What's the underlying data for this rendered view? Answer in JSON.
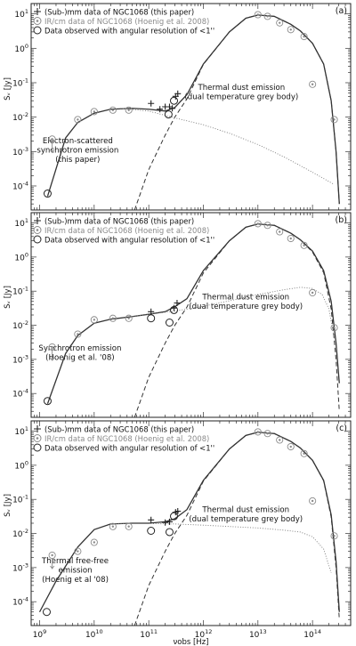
{
  "chart_data": [
    {
      "type": "line",
      "panel_label": "(a)",
      "xscale": "log",
      "yscale": "log",
      "xlim": [
        700000000.0,
        500000000000000.0
      ],
      "ylim": [
        2e-05,
        20
      ],
      "ylabel": "Sᵥ [Jy]",
      "xlabel": "",
      "x_ticks": [],
      "y_ticks": [
        {
          "v": 0.0001,
          "b": "10",
          "e": "-4"
        },
        {
          "v": 0.001,
          "b": "10",
          "e": "-3"
        },
        {
          "v": 0.01,
          "b": "10",
          "e": "-2"
        },
        {
          "v": 0.1,
          "b": "10",
          "e": "-1"
        },
        {
          "v": 1,
          "b": "10",
          "e": "0"
        },
        {
          "v": 10,
          "b": "10",
          "e": "1"
        }
      ],
      "legend": [
        {
          "symbol": "plus",
          "text": "(Sub-)mm data of NGC1068 (this paper)"
        },
        {
          "symbol": "circle-dot",
          "text": "IR/cm data  of NGC1068 (Hoenig et al. 2008)"
        },
        {
          "symbol": "circle",
          "text": "Data observed with angular resolution of <1''"
        }
      ],
      "annotations": [
        {
          "lines": [
            "Electron-scattered",
            "synchrotron emission",
            "(this paper)"
          ],
          "x": 5000000000.0,
          "y": 0.0011
        },
        {
          "lines": [
            "Thermal dust emission",
            "(dual temperature grey body)"
          ],
          "x": 5000000000000.0,
          "y": 0.055
        }
      ],
      "series": [
        {
          "style": "solid",
          "x": [
            1400000000.0,
            3000000000.0,
            5000000000.0,
            10000000000.0,
            20000000000.0,
            50000000000.0,
            100000000000.0,
            200000000000.0,
            300000000000.0,
            500000000000.0,
            1000000000000.0,
            3000000000000.0,
            6000000000000.0,
            10000000000000.0,
            20000000000000.0,
            40000000000000.0,
            60000000000000.0,
            100000000000000.0,
            160000000000000.0,
            220000000000000.0,
            270000000000000.0,
            310000000000000.0
          ],
          "y": [
            5e-05,
            0.0025,
            0.007,
            0.013,
            0.017,
            0.018,
            0.017,
            0.015,
            0.019,
            0.045,
            0.35,
            3,
            7.5,
            9.3,
            8.5,
            5,
            3.2,
            1.4,
            0.35,
            0.03,
            0.001,
            3e-05
          ]
        },
        {
          "style": "dashed",
          "x": [
            55000000000.0,
            100000000000.0,
            200000000000.0,
            300000000000.0,
            500000000000.0,
            1000000000000.0,
            3000000000000.0,
            6000000000000.0,
            10000000000000.0,
            20000000000000.0,
            40000000000000.0,
            60000000000000.0,
            100000000000000.0,
            160000000000000.0,
            220000000000000.0,
            270000000000000.0,
            310000000000000.0
          ],
          "y": [
            2e-05,
            0.0003,
            0.003,
            0.01,
            0.034,
            0.34,
            3,
            7.5,
            9.3,
            8.5,
            5,
            3.2,
            1.4,
            0.35,
            0.03,
            0.001,
            3e-05
          ]
        },
        {
          "style": "dotted",
          "x": [
            30000000000.0,
            100000000000.0,
            300000000000.0,
            1000000000000.0,
            3000000000000.0,
            10000000000000.0,
            30000000000000.0,
            100000000000000.0,
            250000000000000.0
          ],
          "y": [
            0.018,
            0.015,
            0.0095,
            0.006,
            0.0034,
            0.0016,
            0.0007,
            0.00025,
            0.00011
          ]
        }
      ],
      "points_plus": [
        [
          110000000000.0,
          0.025
        ],
        [
          160000000000.0,
          0.017
        ],
        [
          200000000000.0,
          0.02
        ],
        [
          240000000000.0,
          0.02
        ],
        [
          270000000000.0,
          0.018
        ],
        [
          310000000000.0,
          0.04
        ],
        [
          340000000000.0,
          0.048
        ]
      ],
      "points_ir_cm": [
        [
          1700000000.0,
          0.0023,
          "arrow"
        ],
        [
          5000000000.0,
          0.0085
        ],
        [
          10000000000.0,
          0.0145
        ],
        [
          22000000000.0,
          0.016
        ],
        [
          43000000000.0,
          0.016
        ],
        [
          10000000000000.0,
          9.5
        ],
        [
          15000000000000.0,
          8.5
        ],
        [
          25000000000000.0,
          5.5
        ],
        [
          40000000000000.0,
          3.5
        ],
        [
          70000000000000.0,
          2.2
        ],
        [
          100000000000000.0,
          0.09
        ],
        [
          250000000000000.0,
          0.0085
        ]
      ],
      "points_circle": [
        [
          1400000000.0,
          6e-05
        ],
        [
          230000000000.0,
          0.012
        ],
        [
          290000000000.0,
          0.03
        ]
      ]
    },
    {
      "type": "line",
      "panel_label": "(b)",
      "xscale": "log",
      "yscale": "log",
      "xlim": [
        700000000.0,
        500000000000000.0
      ],
      "ylim": [
        2e-05,
        20
      ],
      "ylabel": "Sᵥ [Jy]",
      "xlabel": "",
      "x_ticks": [],
      "y_ticks": [
        {
          "v": 0.0001,
          "b": "10",
          "e": "-4"
        },
        {
          "v": 0.001,
          "b": "10",
          "e": "-3"
        },
        {
          "v": 0.01,
          "b": "10",
          "e": "-2"
        },
        {
          "v": 0.1,
          "b": "10",
          "e": "-1"
        },
        {
          "v": 1,
          "b": "10",
          "e": "0"
        },
        {
          "v": 10,
          "b": "10",
          "e": "1"
        }
      ],
      "legend": [
        {
          "symbol": "plus",
          "text": "(Sub-)mm data of NGC1068 (this paper)"
        },
        {
          "symbol": "circle-dot",
          "text": "IR/cm data  of NGC1068 (Hoenig et al. 2008)"
        },
        {
          "symbol": "circle",
          "text": "Data observed with angular resolution of <1''"
        }
      ],
      "annotations": [
        {
          "lines": [
            "Synchrotron emission",
            "(Hoenig et al. '08)"
          ],
          "x": 5500000000.0,
          "y": 0.0016
        },
        {
          "lines": [
            "Thermal dust emission",
            "(dual temperature grey body)"
          ],
          "x": 6000000000000.0,
          "y": 0.05
        }
      ],
      "series": [
        {
          "style": "solid",
          "x": [
            1400000000.0,
            3000000000.0,
            5000000000.0,
            10000000000.0,
            20000000000.0,
            50000000000.0,
            100000000000.0,
            200000000000.0,
            300000000000.0,
            500000000000.0,
            1000000000000.0,
            3000000000000.0,
            6000000000000.0,
            10000000000000.0,
            20000000000000.0,
            40000000000000.0,
            60000000000000.0,
            100000000000000.0,
            160000000000000.0,
            220000000000000.0,
            270000000000000.0,
            310000000000000.0
          ],
          "y": [
            5e-05,
            0.0015,
            0.005,
            0.0115,
            0.015,
            0.018,
            0.021,
            0.025,
            0.035,
            0.06,
            0.4,
            3,
            7.5,
            9.3,
            8.5,
            5,
            3.2,
            1.5,
            0.4,
            0.05,
            0.003,
            0.0002
          ]
        },
        {
          "style": "dashed",
          "x": [
            55000000000.0,
            100000000000.0,
            200000000000.0,
            300000000000.0,
            500000000000.0,
            1000000000000.0,
            3000000000000.0,
            6000000000000.0,
            10000000000000.0,
            20000000000000.0,
            40000000000000.0,
            60000000000000.0,
            100000000000000.0,
            160000000000000.0,
            220000000000000.0,
            270000000000000.0,
            310000000000000.0
          ],
          "y": [
            2e-05,
            0.0003,
            0.003,
            0.01,
            0.034,
            0.34,
            3,
            7.5,
            9.3,
            8.5,
            5,
            3.2,
            1.4,
            0.35,
            0.03,
            0.001,
            3e-05
          ]
        },
        {
          "style": "dotted",
          "x": [
            50000000000.0,
            100000000000.0,
            300000000000.0,
            1000000000000.0,
            3000000000000.0,
            10000000000000.0,
            30000000000000.0,
            60000000000000.0,
            100000000000000.0,
            150000000000000.0,
            200000000000000.0,
            250000000000000.0
          ],
          "y": [
            0.018,
            0.021,
            0.026,
            0.036,
            0.052,
            0.08,
            0.11,
            0.13,
            0.12,
            0.08,
            0.03,
            0.004
          ]
        }
      ],
      "points_plus": [
        [
          110000000000.0,
          0.025
        ],
        [
          290000000000.0,
          0.032
        ],
        [
          330000000000.0,
          0.045
        ]
      ],
      "points_ir_cm": [
        [
          1700000000.0,
          0.0023,
          "arrow"
        ],
        [
          5000000000.0,
          0.0055
        ],
        [
          10000000000.0,
          0.0145
        ],
        [
          22000000000.0,
          0.016
        ],
        [
          43000000000.0,
          0.016
        ],
        [
          10000000000000.0,
          9.5
        ],
        [
          15000000000000.0,
          8.5
        ],
        [
          25000000000000.0,
          5.5
        ],
        [
          40000000000000.0,
          3.5
        ],
        [
          70000000000000.0,
          2.2
        ],
        [
          100000000000000.0,
          0.09
        ],
        [
          250000000000000.0,
          0.0085
        ]
      ],
      "points_circle": [
        [
          1400000000.0,
          6e-05
        ],
        [
          110000000000.0,
          0.016
        ],
        [
          240000000000.0,
          0.012
        ],
        [
          290000000000.0,
          0.028
        ]
      ]
    },
    {
      "type": "line",
      "panel_label": "(c)",
      "xscale": "log",
      "yscale": "log",
      "xlim": [
        700000000.0,
        500000000000000.0
      ],
      "ylim": [
        2e-05,
        20
      ],
      "ylabel": "Sᵥ [Jy]",
      "xlabel": "νobs [Hz]",
      "x_ticks": [
        {
          "v": 1000000000.0,
          "b": "10",
          "e": "9"
        },
        {
          "v": 10000000000.0,
          "b": "10",
          "e": "10"
        },
        {
          "v": 100000000000.0,
          "b": "10",
          "e": "11"
        },
        {
          "v": 1000000000000.0,
          "b": "10",
          "e": "12"
        },
        {
          "v": 10000000000000.0,
          "b": "10",
          "e": "13"
        },
        {
          "v": 100000000000000.0,
          "b": "10",
          "e": "14"
        }
      ],
      "y_ticks": [
        {
          "v": 0.0001,
          "b": "10",
          "e": "-4"
        },
        {
          "v": 0.001,
          "b": "10",
          "e": "-3"
        },
        {
          "v": 0.01,
          "b": "10",
          "e": "-2"
        },
        {
          "v": 0.1,
          "b": "10",
          "e": "-1"
        },
        {
          "v": 1,
          "b": "10",
          "e": "0"
        },
        {
          "v": 10,
          "b": "10",
          "e": "1"
        }
      ],
      "legend": [
        {
          "symbol": "plus",
          "text": "(Sub-)mm data of NGC1068 (this paper)"
        },
        {
          "symbol": "circle-dot",
          "text": "IR/cm data  of NGC1068 (Hoenig et al. 2008)"
        },
        {
          "symbol": "circle",
          "text": "Data observed with angular resolution of <1''"
        }
      ],
      "annotations": [
        {
          "lines": [
            "Thermal free-free",
            "emission",
            "(Hoenig et al '08)"
          ],
          "x": 4500000000.0,
          "y": 0.00085
        },
        {
          "lines": [
            "Thermal dust emission",
            "(dual temperature grey body)"
          ],
          "x": 6000000000000.0,
          "y": 0.037
        }
      ],
      "series": [
        {
          "style": "solid",
          "x": [
            1000000000.0,
            2000000000.0,
            5000000000.0,
            10000000000.0,
            20000000000.0,
            50000000000.0,
            100000000000.0,
            200000000000.0,
            300000000000.0,
            500000000000.0,
            1000000000000.0,
            3000000000000.0,
            6000000000000.0,
            10000000000000.0,
            20000000000000.0,
            40000000000000.0,
            60000000000000.0,
            100000000000000.0,
            160000000000000.0,
            220000000000000.0,
            270000000000000.0,
            310000000000000.0
          ],
          "y": [
            5e-05,
            0.0004,
            0.004,
            0.013,
            0.019,
            0.02,
            0.02,
            0.022,
            0.027,
            0.05,
            0.36,
            3,
            7.5,
            9.3,
            8.5,
            5,
            3.2,
            1.4,
            0.36,
            0.035,
            0.0015,
            5e-05
          ]
        },
        {
          "style": "dashed",
          "x": [
            55000000000.0,
            100000000000.0,
            200000000000.0,
            300000000000.0,
            500000000000.0,
            1000000000000.0,
            3000000000000.0,
            6000000000000.0,
            10000000000000.0,
            20000000000000.0,
            40000000000000.0,
            60000000000000.0,
            100000000000000.0,
            160000000000000.0,
            220000000000000.0,
            270000000000000.0,
            310000000000000.0
          ],
          "y": [
            2e-05,
            0.0003,
            0.003,
            0.01,
            0.034,
            0.34,
            3,
            7.5,
            9.3,
            8.5,
            5,
            3.2,
            1.4,
            0.35,
            0.03,
            0.001,
            3e-05
          ]
        },
        {
          "style": "dotted",
          "x": [
            20000000000.0,
            100000000000.0,
            300000000000.0,
            1000000000000.0,
            3000000000000.0,
            10000000000000.0,
            30000000000000.0,
            60000000000000.0,
            100000000000000.0,
            160000000000000.0,
            220000000000000.0
          ],
          "y": [
            0.0195,
            0.0195,
            0.019,
            0.0175,
            0.016,
            0.0145,
            0.0125,
            0.011,
            0.008,
            0.0035,
            0.0007
          ]
        }
      ],
      "points_plus": [
        [
          110000000000.0,
          0.025
        ],
        [
          200000000000.0,
          0.021
        ],
        [
          240000000000.0,
          0.022
        ],
        [
          310000000000.0,
          0.042
        ],
        [
          340000000000.0,
          0.045
        ]
      ],
      "points_ir_cm": [
        [
          1700000000.0,
          0.0023,
          "arrow"
        ],
        [
          5000000000.0,
          0.003
        ],
        [
          10000000000.0,
          0.0055
        ],
        [
          22000000000.0,
          0.016
        ],
        [
          43000000000.0,
          0.016
        ],
        [
          10000000000000.0,
          9.5
        ],
        [
          15000000000000.0,
          8.5
        ],
        [
          25000000000000.0,
          5.5
        ],
        [
          40000000000000.0,
          3.5
        ],
        [
          70000000000000.0,
          2.2
        ],
        [
          100000000000000.0,
          0.09
        ],
        [
          250000000000000.0,
          0.0085
        ]
      ],
      "points_circle": [
        [
          1350000000.0,
          5e-05
        ],
        [
          110000000000.0,
          0.012
        ],
        [
          240000000000.0,
          0.011
        ],
        [
          290000000000.0,
          0.032
        ]
      ]
    }
  ]
}
